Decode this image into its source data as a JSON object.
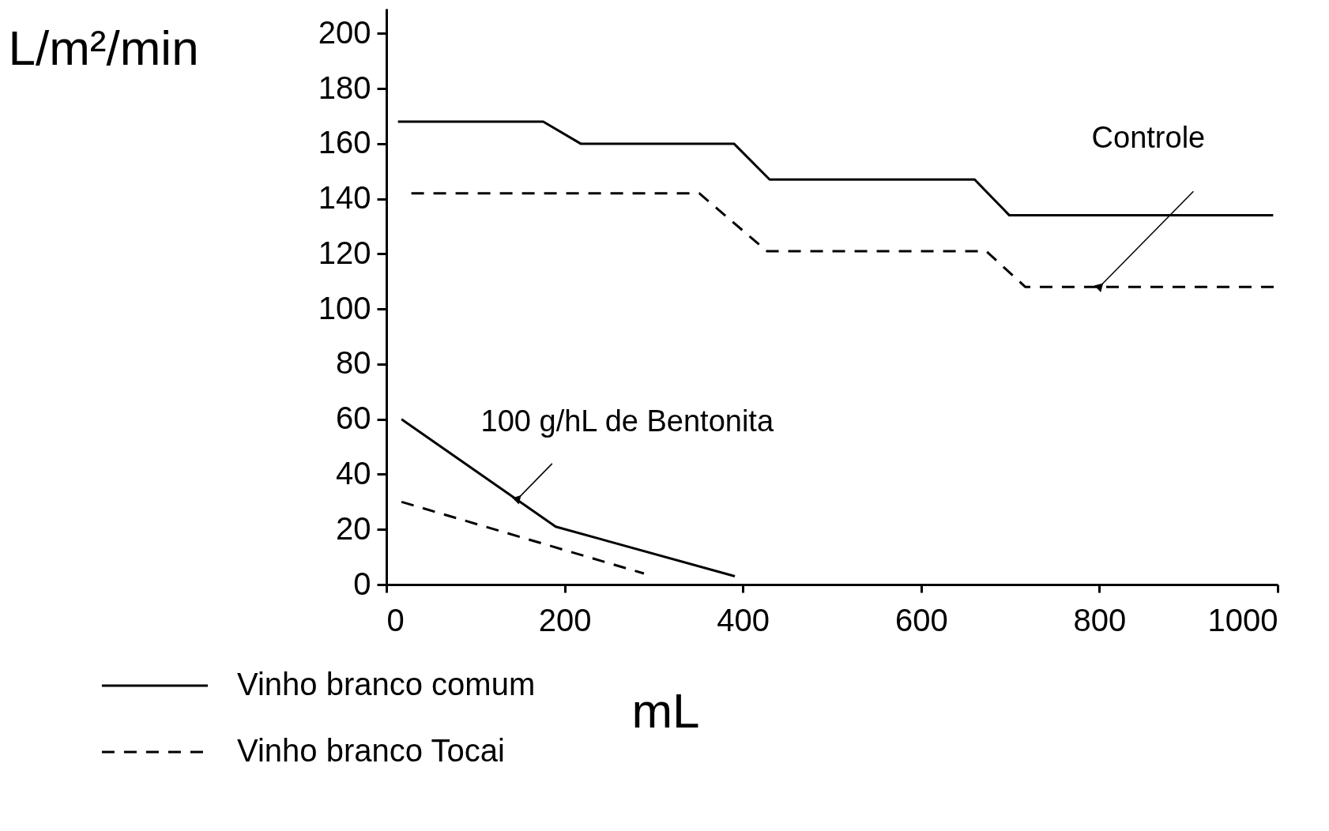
{
  "chart_data": {
    "type": "line",
    "xlabel": "mL",
    "ylabel": "L/m²/min",
    "xlim": [
      0,
      1000
    ],
    "xticks": [
      0,
      200,
      400,
      600,
      800,
      1000
    ],
    "ylim": [
      0,
      209
    ],
    "yticks": [
      0,
      20,
      40,
      60,
      80,
      100,
      120,
      140,
      160,
      180,
      200
    ],
    "grid": false,
    "legend": "bottom left",
    "marker": "none",
    "series": [
      {
        "name": "Vinho branco comum",
        "color": "#000000",
        "line_style": "solid",
        "x": [
          13,
          176,
          218,
          390,
          430,
          660,
          699,
          995
        ],
        "values": [
          168,
          168,
          160,
          160,
          147,
          147,
          134,
          134
        ]
      },
      {
        "name": "Vinho branco Tocai",
        "color": "#000000",
        "line_style": "dashed",
        "x": [
          28,
          351,
          427,
          673,
          717,
          1000
        ],
        "values": [
          142,
          142,
          121,
          121,
          108,
          108
        ]
      },
      {
        "color": "#000000",
        "line_style": "solid",
        "x": [
          17,
          190,
          391
        ],
        "values": [
          60,
          21,
          3
        ]
      },
      {
        "color": "#000000",
        "line_style": "dashed",
        "x": [
          17,
          289
        ],
        "values": [
          30,
          4
        ]
      }
    ],
    "annotations": [
      {
        "text": "Controle",
        "x": 800,
        "y": 108
      },
      {
        "text": "100 g/hL de Bentonita",
        "x": 147,
        "y": 31
      }
    ]
  }
}
